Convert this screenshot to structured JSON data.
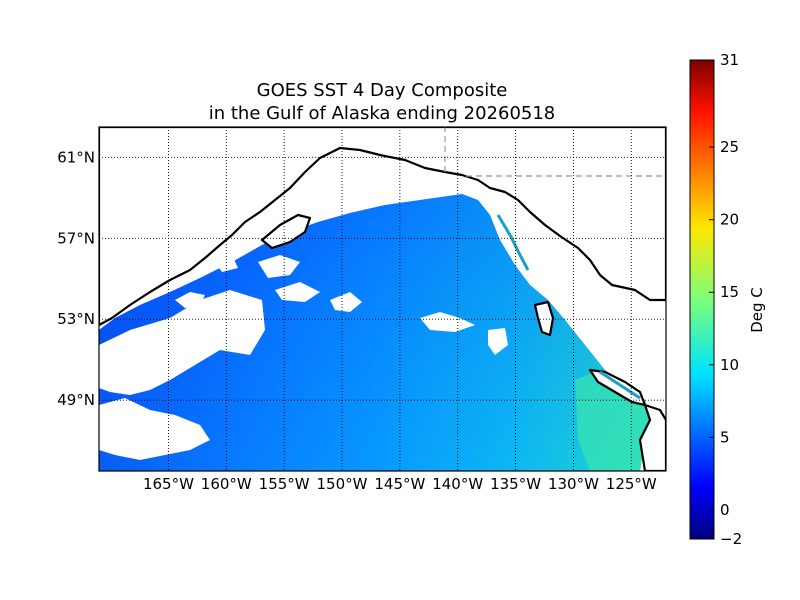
{
  "title_line1": "GOES SST 4 Day Composite",
  "title_line2": "in the Gulf of Alaska ending 20260518",
  "map": {
    "lon_range": [
      -171,
      -122
    ],
    "lat_range": [
      45.5,
      62.5
    ],
    "meridians": [
      {
        "value": -165,
        "label": "165°W"
      },
      {
        "value": -160,
        "label": "160°W"
      },
      {
        "value": -155,
        "label": "155°W"
      },
      {
        "value": -150,
        "label": "150°W"
      },
      {
        "value": -145,
        "label": "145°W"
      },
      {
        "value": -140,
        "label": "140°W"
      },
      {
        "value": -135,
        "label": "135°W"
      },
      {
        "value": -130,
        "label": "130°W"
      },
      {
        "value": -125,
        "label": "125°W"
      }
    ],
    "parallels": [
      {
        "value": 61,
        "label": "61°N"
      },
      {
        "value": 57,
        "label": "57°N"
      },
      {
        "value": 53,
        "label": "53°N"
      },
      {
        "value": 49,
        "label": "49°N"
      }
    ],
    "land_color": "#ffffff",
    "coastline_color": "#000000",
    "border_color": "#999999",
    "cloud_mask_color": "#ffffff"
  },
  "colorbar": {
    "label": "Deg C",
    "min": -2,
    "max": 31,
    "ticks": [
      -2,
      0,
      5,
      10,
      15,
      20,
      25,
      31
    ],
    "colormap": "jet"
  }
}
